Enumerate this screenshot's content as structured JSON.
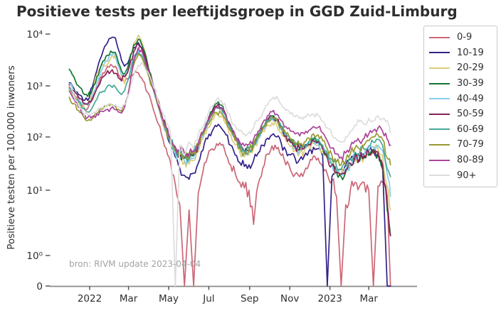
{
  "chart": {
    "title": "Positieve tests per leeftijdsgroep in GGD Zuid-Limburg",
    "ylabel": "Positieve testen per 100.000 inwoners",
    "source_note": "bron: RIVM update 2023-04-04"
  },
  "chart_data": {
    "type": "line",
    "title": "Positieve tests per leeftijdsgroep in GGD Zuid-Limburg",
    "xlabel": "",
    "ylabel": "Positieve testen per 100.000 inwoners",
    "y_scale": "symlog",
    "grid": false,
    "legend_position": "right-outside",
    "source_note": "bron: RIVM update 2023-04-04",
    "y_ticks": [
      {
        "value": 10000,
        "label": "10⁴"
      },
      {
        "value": 1000,
        "label": "10³"
      },
      {
        "value": 100,
        "label": "10²"
      },
      {
        "value": 10,
        "label": "10¹"
      },
      {
        "value": 1,
        "label": "10⁰"
      },
      {
        "value": 0,
        "label": "0"
      }
    ],
    "x_unit": "days since 2022-01-01",
    "x_ticks": [
      {
        "day": 0,
        "label": "2022"
      },
      {
        "day": 59,
        "label": "Mar"
      },
      {
        "day": 120,
        "label": "May"
      },
      {
        "day": 181,
        "label": "Jul"
      },
      {
        "day": 243,
        "label": "Sep"
      },
      {
        "day": 304,
        "label": "Nov"
      },
      {
        "day": 365,
        "label": "2023"
      },
      {
        "day": 424,
        "label": "Mar"
      }
    ],
    "x_days": [
      -31,
      -24,
      -17,
      -10,
      -3,
      4,
      11,
      18,
      25,
      32,
      39,
      46,
      53,
      60,
      67,
      74,
      81,
      88,
      95,
      102,
      109,
      116,
      123,
      130,
      137,
      144,
      151,
      158,
      165,
      172,
      179,
      186,
      193,
      200,
      207,
      214,
      221,
      228,
      235,
      242,
      249,
      256,
      263,
      270,
      277,
      284,
      291,
      298,
      305,
      312,
      319,
      326,
      333,
      340,
      347,
      354,
      361,
      368,
      375,
      382,
      389,
      396,
      403,
      410,
      417,
      424,
      431,
      438,
      445,
      452,
      457
    ],
    "series": [
      {
        "name": "0-9",
        "color": "#CC6677",
        "values": [
          950,
          700,
          500,
          390,
          360,
          520,
          950,
          1500,
          2100,
          2600,
          2400,
          1500,
          1150,
          1400,
          1700,
          1800,
          1250,
          750,
          420,
          210,
          115,
          62,
          32,
          13,
          6,
          0,
          5,
          0,
          9,
          22,
          42,
          60,
          75,
          70,
          46,
          30,
          21,
          14,
          11,
          10,
          3,
          13,
          26,
          48,
          68,
          60,
          45,
          30,
          24,
          20,
          18,
          22,
          30,
          44,
          40,
          28,
          20,
          15,
          8,
          0,
          6,
          10,
          14,
          12,
          14,
          10,
          0,
          12,
          14,
          8,
          0
        ]
      },
      {
        "name": "10-19",
        "color": "#332288",
        "values": [
          1150,
          900,
          680,
          520,
          520,
          950,
          2000,
          3800,
          6200,
          8300,
          8500,
          4200,
          2400,
          3200,
          5600,
          6800,
          4600,
          2300,
          1100,
          520,
          250,
          130,
          72,
          42,
          26,
          19,
          16,
          21,
          32,
          56,
          92,
          130,
          160,
          150,
          110,
          70,
          46,
          33,
          28,
          30,
          36,
          50,
          70,
          95,
          110,
          100,
          76,
          56,
          46,
          40,
          38,
          44,
          54,
          64,
          60,
          45,
          0,
          18,
          22,
          25,
          30,
          38,
          48,
          44,
          48,
          54,
          58,
          50,
          28,
          0,
          0
        ]
      },
      {
        "name": "20-29",
        "color": "#DDCC77",
        "values": [
          900,
          650,
          480,
          380,
          420,
          800,
          1700,
          2500,
          2400,
          3400,
          4000,
          2200,
          1100,
          2600,
          6800,
          9500,
          6000,
          2600,
          1150,
          520,
          230,
          125,
          72,
          50,
          40,
          35,
          31,
          36,
          52,
          92,
          155,
          220,
          280,
          260,
          180,
          110,
          72,
          52,
          42,
          46,
          62,
          90,
          130,
          170,
          190,
          170,
          120,
          86,
          66,
          56,
          50,
          55,
          65,
          75,
          70,
          55,
          40,
          30,
          22,
          20,
          25,
          32,
          40,
          38,
          42,
          48,
          55,
          60,
          45,
          12,
          5
        ]
      },
      {
        "name": "30-39",
        "color": "#117733",
        "values": [
          2100,
          1500,
          1000,
          720,
          620,
          850,
          1500,
          2600,
          3800,
          4700,
          4400,
          2400,
          1700,
          2900,
          6200,
          8000,
          5400,
          2700,
          1250,
          580,
          270,
          145,
          82,
          55,
          45,
          40,
          38,
          45,
          66,
          115,
          205,
          320,
          450,
          420,
          280,
          160,
          100,
          70,
          55,
          60,
          76,
          110,
          160,
          220,
          260,
          230,
          160,
          110,
          85,
          70,
          60,
          65,
          75,
          88,
          83,
          64,
          45,
          32,
          22,
          18,
          22,
          30,
          38,
          35,
          40,
          45,
          50,
          45,
          25,
          5,
          2
        ]
      },
      {
        "name": "40-49",
        "color": "#88CCEE",
        "values": [
          1100,
          800,
          580,
          430,
          420,
          620,
          1100,
          2000,
          3000,
          4000,
          3800,
          2000,
          1500,
          2200,
          3800,
          4800,
          3500,
          1900,
          950,
          470,
          230,
          125,
          72,
          48,
          40,
          36,
          34,
          40,
          58,
          100,
          175,
          270,
          380,
          350,
          240,
          140,
          88,
          62,
          50,
          54,
          68,
          98,
          140,
          195,
          230,
          205,
          145,
          100,
          78,
          64,
          56,
          60,
          70,
          82,
          78,
          60,
          42,
          30,
          22,
          20,
          24,
          32,
          42,
          40,
          46,
          55,
          65,
          70,
          55,
          20,
          8
        ]
      },
      {
        "name": "50-59",
        "color": "#882255",
        "values": [
          1050,
          800,
          600,
          470,
          440,
          560,
          900,
          1400,
          1700,
          1900,
          1750,
          1350,
          1500,
          2300,
          4600,
          6400,
          4700,
          2400,
          1200,
          600,
          290,
          155,
          88,
          60,
          48,
          42,
          40,
          48,
          70,
          120,
          200,
          300,
          400,
          380,
          260,
          150,
          95,
          65,
          52,
          56,
          70,
          100,
          150,
          210,
          250,
          220,
          150,
          105,
          80,
          65,
          58,
          62,
          72,
          85,
          80,
          60,
          42,
          30,
          22,
          20,
          24,
          32,
          42,
          40,
          45,
          52,
          58,
          52,
          30,
          6,
          2
        ]
      },
      {
        "name": "60-69",
        "color": "#44AA99",
        "values": [
          900,
          650,
          480,
          360,
          310,
          380,
          550,
          750,
          900,
          1000,
          950,
          720,
          800,
          1500,
          3200,
          4300,
          3300,
          1900,
          1000,
          520,
          260,
          145,
          82,
          58,
          48,
          45,
          42,
          50,
          72,
          120,
          200,
          290,
          370,
          350,
          250,
          150,
          95,
          68,
          55,
          58,
          72,
          105,
          155,
          215,
          255,
          225,
          160,
          115,
          90,
          75,
          68,
          72,
          82,
          95,
          90,
          70,
          50,
          38,
          28,
          25,
          30,
          40,
          52,
          50,
          58,
          68,
          80,
          90,
          70,
          25,
          18
        ]
      },
      {
        "name": "70-79",
        "color": "#999933",
        "values": [
          600,
          450,
          330,
          260,
          210,
          230,
          290,
          350,
          400,
          430,
          410,
          330,
          400,
          900,
          2600,
          4000,
          3100,
          1800,
          950,
          480,
          240,
          135,
          80,
          58,
          50,
          46,
          44,
          52,
          70,
          110,
          170,
          240,
          300,
          290,
          210,
          130,
          85,
          62,
          52,
          56,
          70,
          100,
          145,
          200,
          240,
          215,
          155,
          115,
          92,
          80,
          72,
          80,
          95,
          115,
          110,
          85,
          60,
          45,
          34,
          30,
          36,
          48,
          62,
          60,
          70,
          85,
          100,
          110,
          90,
          40,
          30
        ]
      },
      {
        "name": "80-89",
        "color": "#AA4499",
        "values": [
          800,
          550,
          380,
          280,
          240,
          250,
          280,
          320,
          340,
          360,
          340,
          300,
          380,
          850,
          3000,
          5500,
          4100,
          2200,
          1100,
          560,
          280,
          155,
          92,
          66,
          55,
          50,
          48,
          56,
          78,
          125,
          200,
          290,
          380,
          370,
          270,
          170,
          110,
          80,
          68,
          72,
          90,
          130,
          190,
          260,
          310,
          280,
          210,
          160,
          130,
          115,
          105,
          115,
          135,
          160,
          155,
          120,
          85,
          62,
          48,
          42,
          50,
          65,
          85,
          82,
          95,
          115,
          135,
          150,
          130,
          90,
          70
        ]
      },
      {
        "name": "90+",
        "color": "#DDDDDD",
        "values": [
          1000,
          650,
          420,
          300,
          270,
          290,
          330,
          380,
          420,
          450,
          430,
          380,
          430,
          700,
          1600,
          2500,
          2600,
          1900,
          1150,
          620,
          330,
          195,
          120,
          0,
          70,
          45,
          80,
          60,
          110,
          160,
          260,
          400,
          550,
          520,
          380,
          240,
          170,
          130,
          115,
          125,
          150,
          210,
          300,
          420,
          560,
          620,
          430,
          330,
          280,
          250,
          230,
          250,
          270,
          280,
          260,
          200,
          150,
          110,
          90,
          80,
          100,
          130,
          170,
          200,
          180,
          230,
          210,
          260,
          230,
          210,
          120
        ]
      }
    ]
  }
}
